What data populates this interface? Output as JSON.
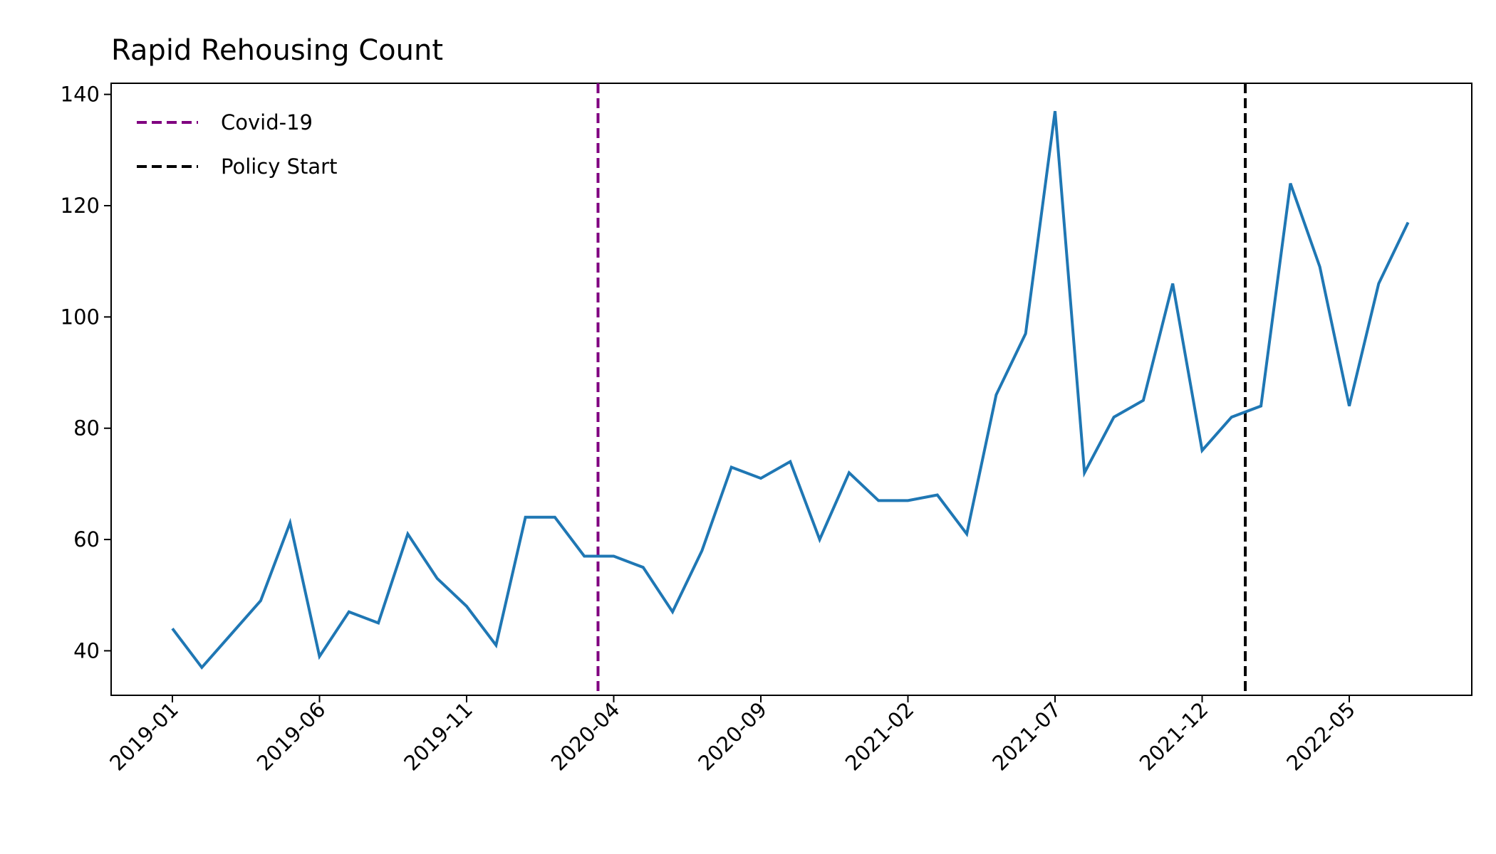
{
  "chart_data": {
    "type": "line",
    "title": "Rapid Rehousing Count",
    "xlabel": "",
    "ylabel": "",
    "x_start": "2019-01",
    "x_ticks": [
      "2019-01",
      "2019-06",
      "2019-11",
      "2020-04",
      "2020-09",
      "2021-02",
      "2021-07",
      "2021-12",
      "2022-05"
    ],
    "y_ticks": [
      40,
      60,
      80,
      100,
      120,
      140
    ],
    "ylim": [
      32,
      142
    ],
    "grid": false,
    "legend_position": "top-left",
    "series": [
      {
        "color": "#1f77b4",
        "x": [
          "2019-01",
          "2019-02",
          "2019-03",
          "2019-04",
          "2019-05",
          "2019-06",
          "2019-07",
          "2019-08",
          "2019-09",
          "2019-10",
          "2019-11",
          "2019-12",
          "2020-01",
          "2020-02",
          "2020-03",
          "2020-04",
          "2020-05",
          "2020-06",
          "2020-07",
          "2020-08",
          "2020-09",
          "2020-10",
          "2020-11",
          "2020-12",
          "2021-01",
          "2021-02",
          "2021-03",
          "2021-04",
          "2021-05",
          "2021-06",
          "2021-07",
          "2021-08",
          "2021-09",
          "2021-10",
          "2021-11",
          "2021-12",
          "2022-01",
          "2022-02",
          "2022-03",
          "2022-04",
          "2022-05",
          "2022-06",
          "2022-07"
        ],
        "values": [
          44,
          37,
          43,
          49,
          63,
          39,
          47,
          45,
          61,
          53,
          48,
          41,
          64,
          64,
          57,
          57,
          55,
          47,
          58,
          73,
          71,
          74,
          60,
          72,
          67,
          67,
          68,
          61,
          86,
          97,
          137,
          72,
          82,
          85,
          106,
          76,
          82,
          84,
          124,
          109,
          84,
          106,
          117
        ]
      }
    ],
    "annotations": [
      {
        "label": "Covid-19",
        "x": "2020-03-15",
        "color": "#800080",
        "style": "dashed"
      },
      {
        "label": "Policy Start",
        "x": "2022-01-15",
        "color": "#000000",
        "style": "dashed"
      }
    ]
  }
}
